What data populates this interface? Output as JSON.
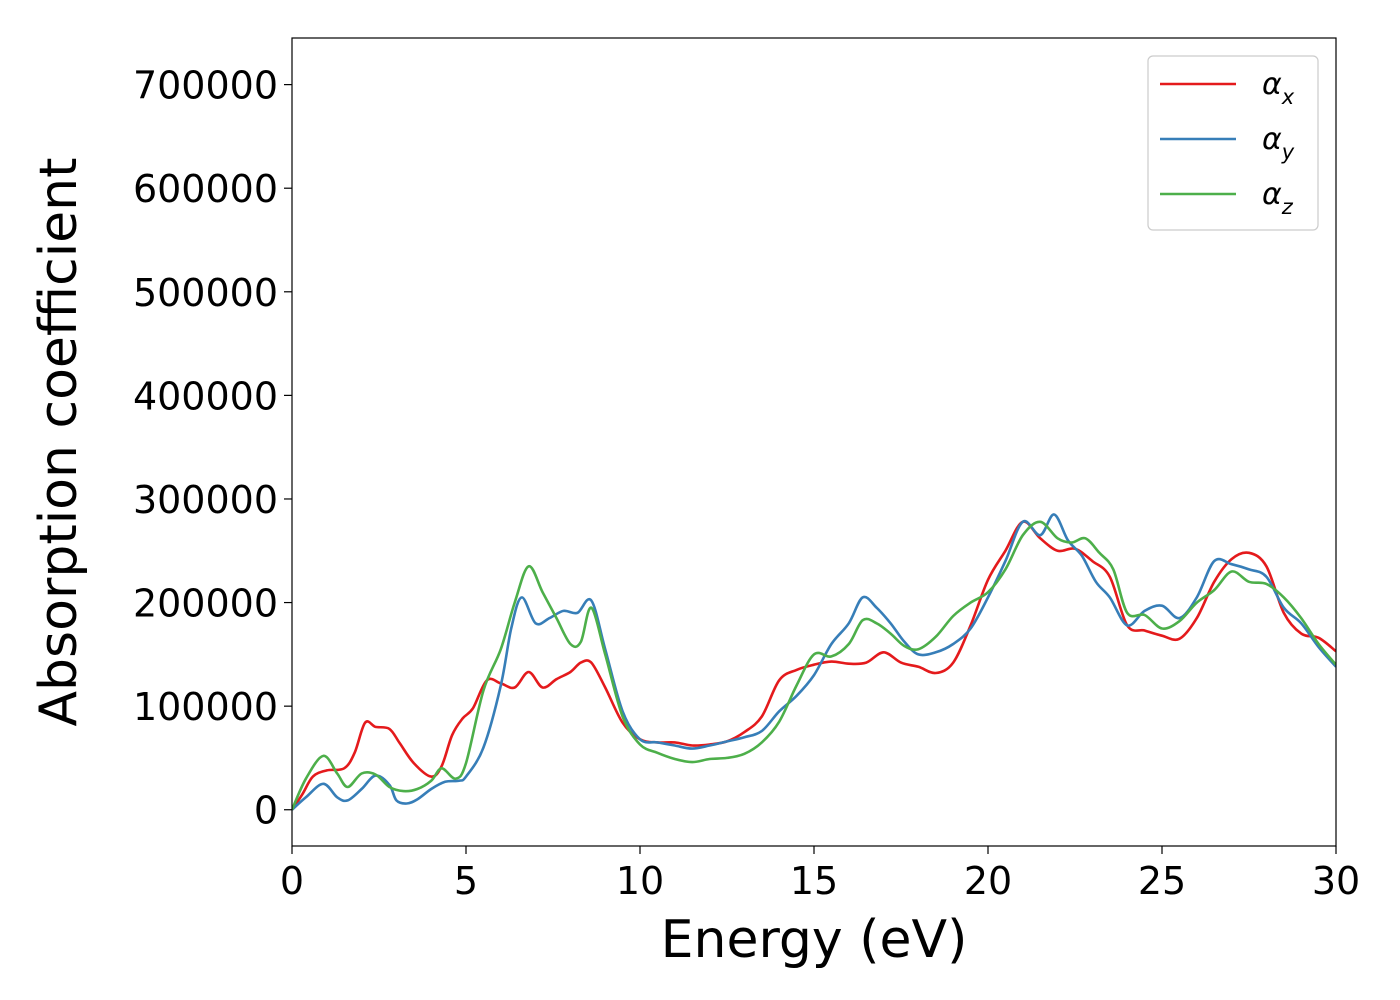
{
  "chart_data": {
    "type": "line",
    "title": "",
    "xlabel": "Energy (eV)",
    "ylabel": "Absorption coefficient",
    "xlim": [
      0,
      30
    ],
    "ylim": [
      -35000,
      745000
    ],
    "xticks": [
      0,
      5,
      10,
      15,
      20,
      25,
      30
    ],
    "yticks": [
      0,
      100000,
      200000,
      300000,
      400000,
      500000,
      600000,
      700000
    ],
    "grid": false,
    "legend_position": "top-right",
    "series": [
      {
        "name": "αx",
        "label_base": "α",
        "label_sub": "x",
        "color": "#e41a1c",
        "points": [
          [
            0,
            0
          ],
          [
            0.3,
            15000
          ],
          [
            0.6,
            32000
          ],
          [
            1.0,
            38000
          ],
          [
            1.5,
            40000
          ],
          [
            1.8,
            55000
          ],
          [
            2.1,
            84000
          ],
          [
            2.4,
            80000
          ],
          [
            2.8,
            78000
          ],
          [
            3.1,
            64000
          ],
          [
            3.5,
            45000
          ],
          [
            4.0,
            32000
          ],
          [
            4.3,
            42000
          ],
          [
            4.6,
            72000
          ],
          [
            4.9,
            88000
          ],
          [
            5.2,
            98000
          ],
          [
            5.6,
            125000
          ],
          [
            6.0,
            122000
          ],
          [
            6.4,
            118000
          ],
          [
            6.8,
            133000
          ],
          [
            7.2,
            118000
          ],
          [
            7.6,
            126000
          ],
          [
            8.0,
            133000
          ],
          [
            8.3,
            142000
          ],
          [
            8.6,
            142000
          ],
          [
            9.0,
            118000
          ],
          [
            9.5,
            84000
          ],
          [
            10.0,
            68000
          ],
          [
            10.5,
            65000
          ],
          [
            11.0,
            65000
          ],
          [
            11.5,
            62000
          ],
          [
            12.0,
            63000
          ],
          [
            12.5,
            66000
          ],
          [
            13.0,
            75000
          ],
          [
            13.5,
            90000
          ],
          [
            14.0,
            125000
          ],
          [
            14.5,
            135000
          ],
          [
            15.0,
            140000
          ],
          [
            15.5,
            143000
          ],
          [
            16.0,
            141000
          ],
          [
            16.5,
            142000
          ],
          [
            17.0,
            152000
          ],
          [
            17.5,
            142000
          ],
          [
            18.0,
            138000
          ],
          [
            18.5,
            132000
          ],
          [
            19.0,
            142000
          ],
          [
            19.5,
            178000
          ],
          [
            20.0,
            222000
          ],
          [
            20.5,
            250000
          ],
          [
            21.0,
            278000
          ],
          [
            21.5,
            262000
          ],
          [
            22.0,
            250000
          ],
          [
            22.5,
            252000
          ],
          [
            23.0,
            240000
          ],
          [
            23.5,
            225000
          ],
          [
            24.0,
            178000
          ],
          [
            24.5,
            173000
          ],
          [
            25.0,
            168000
          ],
          [
            25.5,
            165000
          ],
          [
            26.0,
            185000
          ],
          [
            26.5,
            220000
          ],
          [
            27.0,
            242000
          ],
          [
            27.5,
            248000
          ],
          [
            28.0,
            235000
          ],
          [
            28.5,
            190000
          ],
          [
            29.0,
            170000
          ],
          [
            29.5,
            166000
          ],
          [
            30.0,
            153000
          ]
        ]
      },
      {
        "name": "αy",
        "label_base": "α",
        "label_sub": "y",
        "color": "#377eb8",
        "points": [
          [
            0,
            0
          ],
          [
            0.4,
            12000
          ],
          [
            0.9,
            25000
          ],
          [
            1.3,
            12000
          ],
          [
            1.6,
            9000
          ],
          [
            2.0,
            20000
          ],
          [
            2.4,
            33000
          ],
          [
            2.8,
            24000
          ],
          [
            3.0,
            9000
          ],
          [
            3.3,
            6000
          ],
          [
            3.6,
            10000
          ],
          [
            4.0,
            20000
          ],
          [
            4.4,
            27000
          ],
          [
            4.8,
            28000
          ],
          [
            5.0,
            32000
          ],
          [
            5.5,
            60000
          ],
          [
            6.0,
            120000
          ],
          [
            6.3,
            175000
          ],
          [
            6.6,
            205000
          ],
          [
            7.0,
            180000
          ],
          [
            7.4,
            185000
          ],
          [
            7.8,
            192000
          ],
          [
            8.2,
            190000
          ],
          [
            8.6,
            202000
          ],
          [
            9.0,
            155000
          ],
          [
            9.5,
            95000
          ],
          [
            10.0,
            68000
          ],
          [
            10.5,
            65000
          ],
          [
            11.0,
            62000
          ],
          [
            11.5,
            59000
          ],
          [
            12.0,
            62000
          ],
          [
            12.5,
            66000
          ],
          [
            13.0,
            70000
          ],
          [
            13.5,
            76000
          ],
          [
            14.0,
            95000
          ],
          [
            14.5,
            110000
          ],
          [
            15.0,
            130000
          ],
          [
            15.5,
            160000
          ],
          [
            16.0,
            180000
          ],
          [
            16.4,
            205000
          ],
          [
            16.8,
            195000
          ],
          [
            17.2,
            180000
          ],
          [
            17.6,
            162000
          ],
          [
            18.0,
            150000
          ],
          [
            18.5,
            152000
          ],
          [
            19.0,
            160000
          ],
          [
            19.5,
            175000
          ],
          [
            20.0,
            205000
          ],
          [
            20.5,
            240000
          ],
          [
            21.0,
            278000
          ],
          [
            21.5,
            265000
          ],
          [
            21.9,
            285000
          ],
          [
            22.3,
            260000
          ],
          [
            22.7,
            245000
          ],
          [
            23.1,
            220000
          ],
          [
            23.5,
            205000
          ],
          [
            24.0,
            178000
          ],
          [
            24.5,
            192000
          ],
          [
            25.0,
            197000
          ],
          [
            25.5,
            185000
          ],
          [
            26.0,
            205000
          ],
          [
            26.5,
            240000
          ],
          [
            27.0,
            237000
          ],
          [
            27.5,
            232000
          ],
          [
            28.0,
            225000
          ],
          [
            28.5,
            195000
          ],
          [
            29.0,
            180000
          ],
          [
            29.5,
            157000
          ],
          [
            30.0,
            138000
          ]
        ]
      },
      {
        "name": "αz",
        "label_base": "α",
        "label_sub": "z",
        "color": "#4daf4a",
        "points": [
          [
            0,
            0
          ],
          [
            0.4,
            30000
          ],
          [
            0.9,
            52000
          ],
          [
            1.3,
            35000
          ],
          [
            1.6,
            22000
          ],
          [
            2.0,
            35000
          ],
          [
            2.4,
            34000
          ],
          [
            2.8,
            22000
          ],
          [
            3.2,
            18000
          ],
          [
            3.6,
            20000
          ],
          [
            4.0,
            28000
          ],
          [
            4.3,
            40000
          ],
          [
            4.7,
            30000
          ],
          [
            5.0,
            45000
          ],
          [
            5.5,
            115000
          ],
          [
            6.0,
            155000
          ],
          [
            6.4,
            200000
          ],
          [
            6.8,
            235000
          ],
          [
            7.2,
            210000
          ],
          [
            7.6,
            185000
          ],
          [
            8.0,
            160000
          ],
          [
            8.3,
            162000
          ],
          [
            8.6,
            195000
          ],
          [
            9.0,
            150000
          ],
          [
            9.5,
            90000
          ],
          [
            10.0,
            63000
          ],
          [
            10.5,
            55000
          ],
          [
            11.0,
            49000
          ],
          [
            11.5,
            46000
          ],
          [
            12.0,
            49000
          ],
          [
            12.5,
            50000
          ],
          [
            13.0,
            54000
          ],
          [
            13.5,
            65000
          ],
          [
            14.0,
            85000
          ],
          [
            14.5,
            120000
          ],
          [
            15.0,
            150000
          ],
          [
            15.5,
            148000
          ],
          [
            16.0,
            160000
          ],
          [
            16.4,
            183000
          ],
          [
            16.8,
            180000
          ],
          [
            17.2,
            170000
          ],
          [
            17.6,
            158000
          ],
          [
            18.0,
            155000
          ],
          [
            18.5,
            167000
          ],
          [
            19.0,
            187000
          ],
          [
            19.5,
            200000
          ],
          [
            20.0,
            210000
          ],
          [
            20.5,
            232000
          ],
          [
            21.0,
            265000
          ],
          [
            21.5,
            278000
          ],
          [
            22.0,
            262000
          ],
          [
            22.4,
            258000
          ],
          [
            22.8,
            262000
          ],
          [
            23.2,
            248000
          ],
          [
            23.6,
            232000
          ],
          [
            24.0,
            190000
          ],
          [
            24.5,
            188000
          ],
          [
            25.0,
            175000
          ],
          [
            25.5,
            182000
          ],
          [
            26.0,
            200000
          ],
          [
            26.5,
            212000
          ],
          [
            27.0,
            230000
          ],
          [
            27.5,
            220000
          ],
          [
            28.0,
            218000
          ],
          [
            28.5,
            205000
          ],
          [
            29.0,
            185000
          ],
          [
            29.5,
            160000
          ],
          [
            30.0,
            140000
          ]
        ]
      }
    ]
  }
}
